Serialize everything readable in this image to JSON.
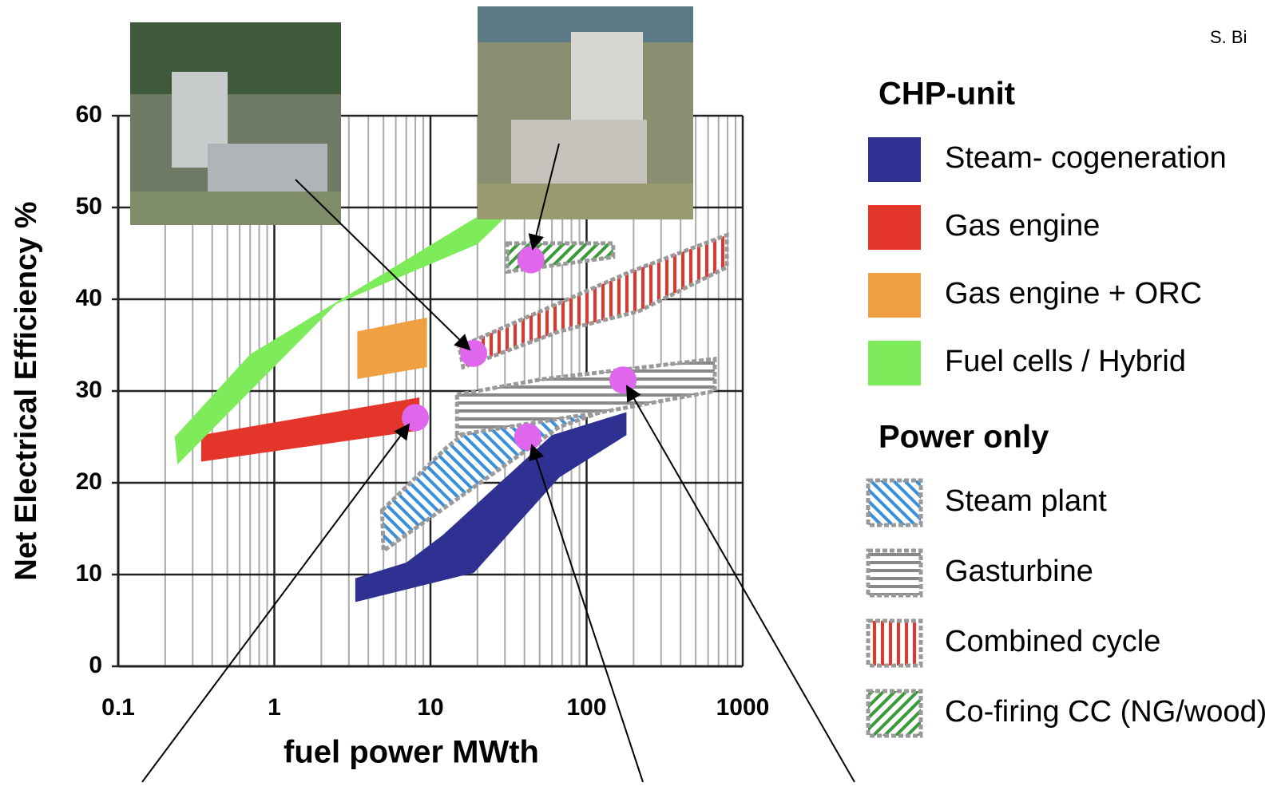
{
  "chart_data": {
    "type": "region",
    "credit": "S. Bi",
    "x_label": "fuel power MWth",
    "y_label": "Net Electrical Efficiency %",
    "xscale": "log",
    "xlim": [
      0.1,
      1000
    ],
    "xticks": [
      0.1,
      1,
      10,
      100,
      1000
    ],
    "ylim": [
      0,
      60
    ],
    "yticks": [
      0,
      10,
      20,
      30,
      40,
      50,
      60
    ],
    "grid": true,
    "groups": [
      {
        "title": "CHP-unit",
        "series": [
          {
            "name": "Steam- cogeneration",
            "color": "#2e3192",
            "fill": "solid",
            "x": [
              3.3,
              7,
              12,
              60,
              180,
              180,
              67,
              19,
              3.3
            ],
            "y": [
              9.6,
              11.3,
              14.3,
              25.2,
              27.7,
              25.2,
              20.6,
              10.2,
              7
            ]
          },
          {
            "name": "Gas engine",
            "color": "#e4352b",
            "fill": "solid",
            "x": [
              0.34,
              8.5,
              8.5,
              0.34
            ],
            "y": [
              25.2,
              29.3,
              25.7,
              22.3
            ]
          },
          {
            "name": "Gas engine + ORC",
            "color": "#f0a040",
            "fill": "solid",
            "x": [
              3.4,
              9.5,
              9.5,
              3.4
            ],
            "y": [
              36.5,
              38,
              32.6,
              31.3
            ]
          },
          {
            "name": "Fuel cells / Hybrid",
            "color": "#7eec5a",
            "fill": "solid",
            "x": [
              0.23,
              0.7,
              20,
              35,
              20,
              2.5,
              0.24
            ],
            "y": [
              25,
              34,
              49,
              50,
              46,
              39.5,
              22
            ]
          }
        ]
      },
      {
        "title": "Power only",
        "series": [
          {
            "name": "Steam plant",
            "color": "#3b8fd9",
            "fill": "diagonal",
            "x": [
              4.9,
              12.8,
              37,
              152,
              181,
              67,
              16.2,
              5
            ],
            "y": [
              17,
              23.9,
              30,
              31.7,
              28.7,
              26.1,
              18.7,
              12.6
            ]
          },
          {
            "name": "Gasturbine",
            "color": "#888888",
            "fill": "horizontal",
            "x": [
              14.8,
              52.6,
              662,
              662,
              135,
              14.8
            ],
            "y": [
              29.6,
              31.3,
              33.5,
              30,
              27.8,
              25.2
            ]
          },
          {
            "name": "Combined cycle",
            "color": "#e4352b",
            "fill": "vertical",
            "x": [
              15.3,
              67,
              191,
              791,
              791,
              216,
              67,
              16.2
            ],
            "y": [
              34.8,
              39.6,
              43,
              47,
              43.5,
              38.7,
              36.5,
              32.6
            ]
          },
          {
            "name": "Co-firing CC (NG/wood)",
            "color": "#3a9a3a",
            "fill": "diagonal-reverse",
            "x": [
              31,
              148,
              148,
              31
            ],
            "y": [
              46.1,
              46.1,
              44.6,
              43
            ]
          }
        ]
      }
    ],
    "points": {
      "color": "#e066ee",
      "x": [
        18.9,
        44,
        8,
        42,
        171
      ],
      "y": [
        34.1,
        44.3,
        27.1,
        25,
        31.2
      ]
    }
  }
}
